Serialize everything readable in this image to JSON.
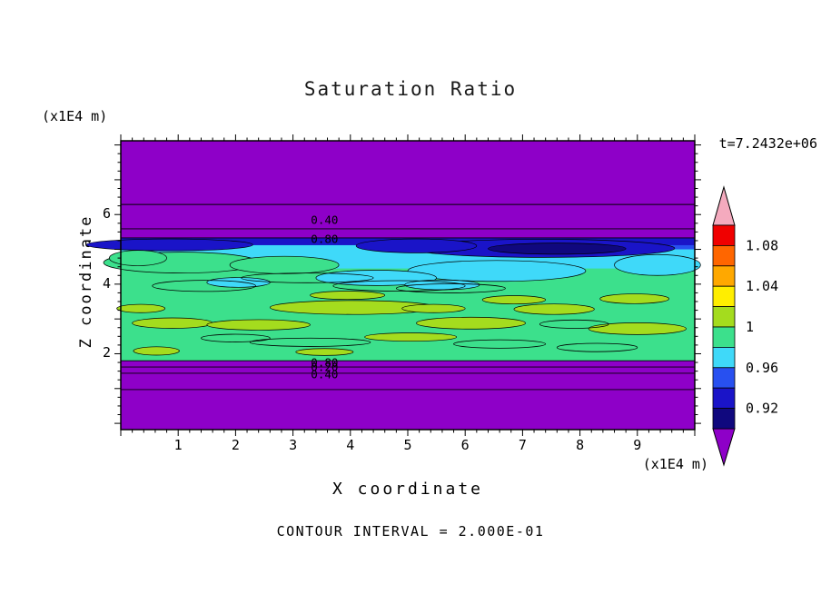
{
  "chart_data": {
    "type": "heatmap",
    "variant": "filled-contour",
    "title": "Saturation Ratio",
    "xlabel": "X coordinate",
    "ylabel": "Z coordinate",
    "x_unit": "(x1E4 m)",
    "y_unit": "(x1E4 m)",
    "time_label": "t=7.2432e+06",
    "contour_interval_label": "CONTOUR INTERVAL = 2.000E-01",
    "x_range": [
      0,
      10
    ],
    "y_range": [
      -0.18,
      8.12
    ],
    "x_ticks": [
      "1",
      "2",
      "3",
      "4",
      "5",
      "6",
      "7",
      "8",
      "9"
    ],
    "y_ticks": [
      "2",
      "4",
      "6"
    ],
    "x_minor_step": 0.2,
    "y_minor_step": 0.25,
    "y_minor_max": 8,
    "grid": false,
    "colorbar": {
      "position": "right",
      "over_color": "#f4aabe",
      "under_color": "#8e00c8",
      "segment_colors_top_to_bottom": [
        "#f00000",
        "#ff6600",
        "#ffa800",
        "#ffee00",
        "#a4dc1e",
        "#3ce08c",
        "#3fd9f9",
        "#2850f0",
        "#1a14c8",
        "#10087e"
      ],
      "labels": [
        {
          "value": "1.08",
          "frac": 0.1
        },
        {
          "value": "1.04",
          "frac": 0.3
        },
        {
          "value": "1",
          "frac": 0.5
        },
        {
          "value": "0.96",
          "frac": 0.7
        },
        {
          "value": "0.92",
          "frac": 0.9
        }
      ]
    },
    "contour_labels": [
      {
        "text": "0.40",
        "x": 3.55,
        "z": 5.85
      },
      {
        "text": "0.80",
        "x": 3.55,
        "z": 5.3
      },
      {
        "text": "0.80",
        "x": 3.55,
        "z": 1.75
      },
      {
        "text": "0.20",
        "x": 3.55,
        "z": 1.62
      },
      {
        "text": "0.40",
        "x": 3.55,
        "z": 1.42
      }
    ],
    "horizontal_contours_z": [
      6.29,
      5.59,
      5.33,
      1.8,
      1.62,
      1.44,
      0.97
    ],
    "field": {
      "bands": [
        {
          "name": "cyan-layer",
          "color": "#3fd9f9",
          "x": [
            0,
            10
          ],
          "z": [
            4.3,
            5.33
          ]
        },
        {
          "name": "blue-strip",
          "color": "#2850f0",
          "x": [
            4.2,
            10
          ],
          "z": [
            5.0,
            5.14
          ]
        },
        {
          "name": "navy-strip",
          "color": "#1a14c8",
          "x": [
            0,
            10
          ],
          "z": [
            5.12,
            5.33
          ]
        },
        {
          "name": "green-body",
          "color": "#3ce08c",
          "x": [
            0,
            10
          ],
          "z": [
            1.8,
            4.45
          ]
        }
      ],
      "ellipses": [
        {
          "fill": "#1a14c8",
          "cx": 7.35,
          "cz": 5.03,
          "rx": 2.3,
          "rz": 0.26
        },
        {
          "fill": "#1a14c8",
          "cx": 5.15,
          "cz": 5.1,
          "rx": 1.05,
          "rz": 0.2
        },
        {
          "fill": "#1a14c8",
          "cx": 0.85,
          "cz": 5.13,
          "rx": 1.45,
          "rz": 0.17
        },
        {
          "fill": "#10087e",
          "cx": 7.6,
          "cz": 5.02,
          "rx": 1.2,
          "rz": 0.16
        },
        {
          "fill": "#3ce08c",
          "cx": 1.05,
          "cz": 4.62,
          "rx": 1.35,
          "rz": 0.3
        },
        {
          "fill": "#3ce08c",
          "cx": 2.85,
          "cz": 4.55,
          "rx": 0.95,
          "rz": 0.25
        },
        {
          "fill": "#3ce08c",
          "cx": 0.3,
          "cz": 4.75,
          "rx": 0.5,
          "rz": 0.22
        },
        {
          "fill": "#3fd9f9",
          "cx": 6.55,
          "cz": 4.38,
          "rx": 1.55,
          "rz": 0.3
        },
        {
          "fill": "#3fd9f9",
          "cx": 4.45,
          "cz": 4.18,
          "rx": 1.05,
          "rz": 0.22
        },
        {
          "fill": "#3fd9f9",
          "cx": 9.35,
          "cz": 4.55,
          "rx": 0.75,
          "rz": 0.3
        },
        {
          "fill": "#3fd9f9",
          "cx": 5.6,
          "cz": 3.98,
          "rx": 0.65,
          "rz": 0.14
        },
        {
          "fill": "#3fd9f9",
          "cx": 2.05,
          "cz": 4.05,
          "rx": 0.55,
          "rz": 0.14
        },
        {
          "fill": "#a4dc1e",
          "cx": 4.05,
          "cz": 3.33,
          "rx": 1.45,
          "rz": 0.2
        },
        {
          "fill": "#a4dc1e",
          "cx": 3.95,
          "cz": 3.68,
          "rx": 0.65,
          "rz": 0.12
        },
        {
          "fill": "#a4dc1e",
          "cx": 0.9,
          "cz": 2.88,
          "rx": 0.7,
          "rz": 0.15
        },
        {
          "fill": "#a4dc1e",
          "cx": 2.4,
          "cz": 2.83,
          "rx": 0.9,
          "rz": 0.15
        },
        {
          "fill": "#a4dc1e",
          "cx": 6.1,
          "cz": 2.88,
          "rx": 0.95,
          "rz": 0.17
        },
        {
          "fill": "#a4dc1e",
          "cx": 7.55,
          "cz": 3.28,
          "rx": 0.7,
          "rz": 0.15
        },
        {
          "fill": "#a4dc1e",
          "cx": 9.0,
          "cz": 2.72,
          "rx": 0.85,
          "rz": 0.17
        },
        {
          "fill": "#a4dc1e",
          "cx": 8.95,
          "cz": 3.58,
          "rx": 0.6,
          "rz": 0.14
        },
        {
          "fill": "#a4dc1e",
          "cx": 0.62,
          "cz": 2.08,
          "rx": 0.4,
          "rz": 0.12
        },
        {
          "fill": "#a4dc1e",
          "cx": 3.55,
          "cz": 2.05,
          "rx": 0.5,
          "rz": 0.1
        },
        {
          "fill": "#a4dc1e",
          "cx": 5.05,
          "cz": 2.48,
          "rx": 0.8,
          "rz": 0.12
        },
        {
          "fill": "#a4dc1e",
          "cx": 6.85,
          "cz": 3.55,
          "rx": 0.55,
          "rz": 0.12
        },
        {
          "fill": "#a4dc1e",
          "cx": 0.35,
          "cz": 3.3,
          "rx": 0.42,
          "rz": 0.12
        },
        {
          "fill": "#a4dc1e",
          "cx": 5.45,
          "cz": 3.3,
          "rx": 0.55,
          "rz": 0.12
        }
      ],
      "rings": [
        {
          "cx": 1.45,
          "cz": 3.95,
          "rx": 0.9,
          "rz": 0.16
        },
        {
          "cx": 3.25,
          "cz": 4.18,
          "rx": 1.15,
          "rz": 0.14
        },
        {
          "cx": 4.85,
          "cz": 3.95,
          "rx": 1.15,
          "rz": 0.15
        },
        {
          "cx": 3.3,
          "cz": 2.33,
          "rx": 1.05,
          "rz": 0.12
        },
        {
          "cx": 6.6,
          "cz": 2.28,
          "rx": 0.8,
          "rz": 0.12
        },
        {
          "cx": 8.3,
          "cz": 2.18,
          "rx": 0.7,
          "rz": 0.12
        },
        {
          "cx": 5.75,
          "cz": 3.88,
          "rx": 0.95,
          "rz": 0.13
        },
        {
          "cx": 7.9,
          "cz": 2.85,
          "rx": 0.6,
          "rz": 0.12
        },
        {
          "cx": 2.0,
          "cz": 2.45,
          "rx": 0.6,
          "rz": 0.11
        }
      ]
    }
  }
}
